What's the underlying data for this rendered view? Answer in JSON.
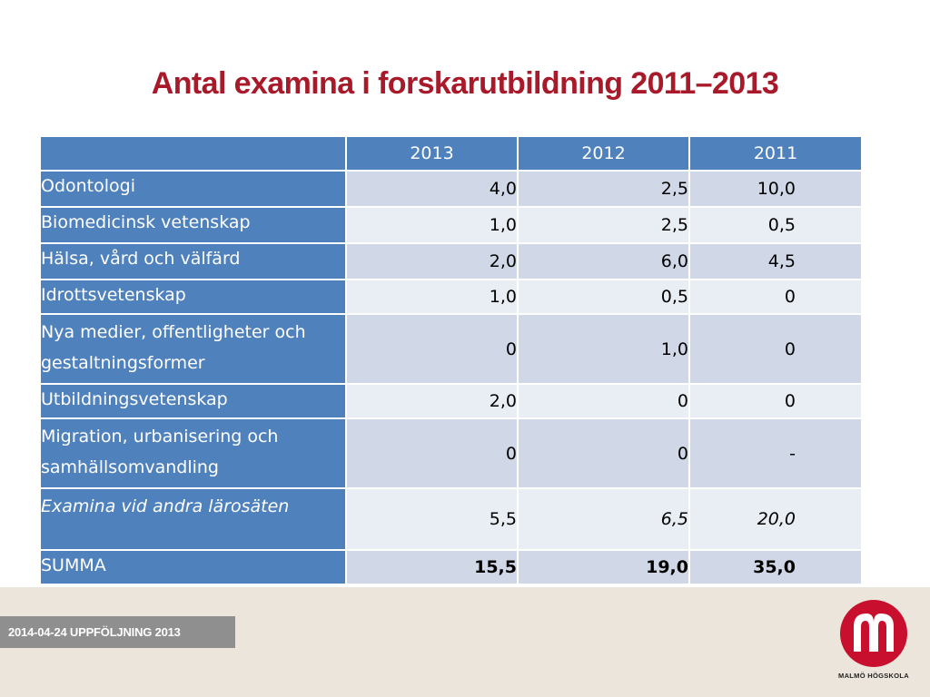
{
  "title": "Antal examina i forskarutbildning 2011–2013",
  "table": {
    "headers": [
      "",
      "2013",
      "2012",
      "2011"
    ],
    "rows": [
      {
        "label": "Odontologi",
        "values": [
          "4,0",
          "2,5",
          "10,0"
        ]
      },
      {
        "label": "Biomedicinsk vetenskap",
        "values": [
          "1,0",
          "2,5",
          "0,5"
        ]
      },
      {
        "label": "Hälsa, vård och välfärd",
        "values": [
          "2,0",
          "6,0",
          "4,5"
        ]
      },
      {
        "label": "Idrottsvetenskap",
        "values": [
          "1,0",
          "0,5",
          "0"
        ]
      },
      {
        "label": "Nya medier, offentligheter och gestaltningsformer",
        "values": [
          "0",
          "1,0",
          "0"
        ]
      },
      {
        "label": "Utbildningsvetenskap",
        "values": [
          "2,0",
          "0",
          "0"
        ]
      },
      {
        "label": "Migration, urbanisering och samhällsomvandling",
        "values": [
          "0",
          "0",
          "-"
        ]
      },
      {
        "label": "Examina vid andra lärosäten",
        "values": [
          "5,5",
          "6,5",
          "20,0"
        ]
      },
      {
        "label": "SUMMA",
        "values": [
          "15,5",
          "19,0",
          "35,0"
        ]
      }
    ]
  },
  "footer": {
    "tag": "2014-04-24  UPPFÖLJNING 2013",
    "logo_text": "MALMÖ HÖGSKOLA",
    "logo_icon": "malmo-hogskola-logo-icon",
    "accent_color": "#a8192a",
    "header_color": "#4f81bd"
  }
}
